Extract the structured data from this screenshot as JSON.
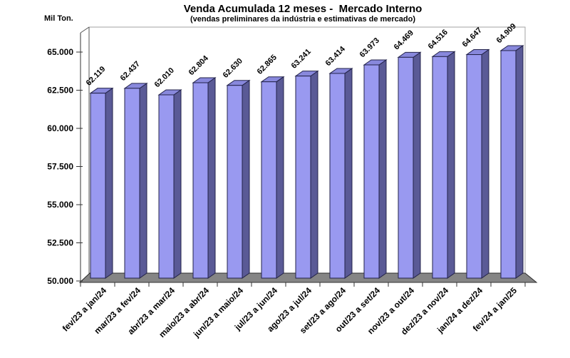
{
  "chart_data": {
    "type": "bar",
    "style": "3d-column",
    "title": "Venda Acumulada 12 meses -  Mercado Interno",
    "subtitle": "(vendas preliminares da indústria e estimativas de mercado)",
    "unit_label": "Mil Ton.",
    "categories": [
      "fev/23 a jan/24",
      "mar/23 a fev/24",
      "abr/23 a mar/24",
      "maio/23 a abr/24",
      "jun/23 a maio/24",
      "jul/23 a jun/24",
      "ago/23 a jul/24",
      "set/23 a ago/24",
      "out/23 a set/24",
      "nov/23 a out/24",
      "dez/23 a nov/24",
      "jan/24 a dez/24",
      "fev/24 a jan/25"
    ],
    "values": [
      62119,
      62437,
      62010,
      62804,
      62630,
      62865,
      63241,
      63414,
      63973,
      64469,
      64516,
      64647,
      64909
    ],
    "value_labels": [
      "62.119",
      "62.437",
      "62.010",
      "62.804",
      "62.630",
      "62.865",
      "63.241",
      "63.414",
      "63.973",
      "64.469",
      "64.516",
      "64.647",
      "64.909"
    ],
    "y_ticks": [
      "50.000",
      "52.500",
      "55.000",
      "57.500",
      "60.000",
      "62.500",
      "65.000"
    ],
    "ylim": [
      50000,
      65000
    ],
    "y_step": 2500,
    "grid": false,
    "legend": "none",
    "colors": {
      "bar_front": "#9999F0",
      "bar_top": "#8888DC",
      "bar_side": "#5A5A96",
      "bar_outline": "#23234A",
      "floor": "#858585",
      "floor_outline": "#2B2B2B",
      "wall_border": "#A3A3A3",
      "axis_line": "#333333",
      "text": "#000000",
      "background": "#FFFFFF"
    }
  }
}
